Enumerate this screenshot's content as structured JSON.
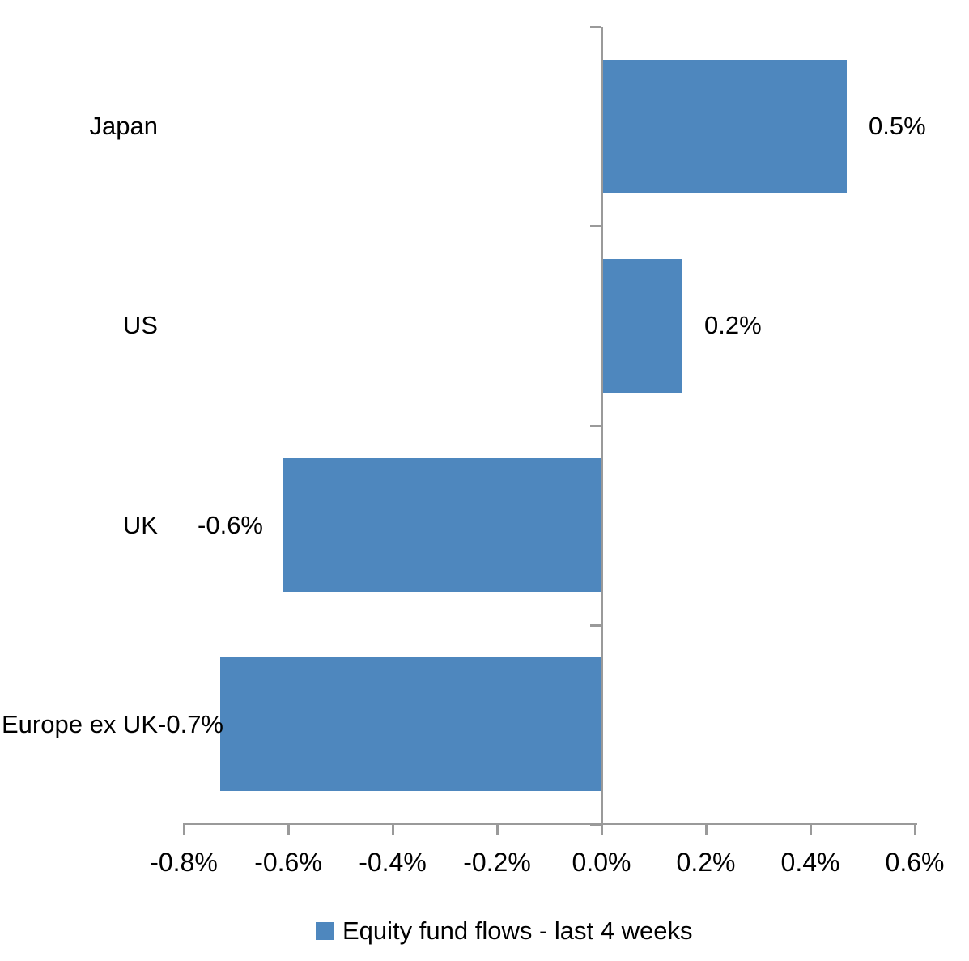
{
  "chart_data": {
    "type": "bar",
    "orientation": "horizontal",
    "title": "",
    "categories": [
      "Japan",
      "US",
      "UK",
      "Europe ex UK"
    ],
    "values": [
      0.5,
      0.2,
      -0.6,
      -0.7
    ],
    "value_labels": [
      "0.5%",
      "0.2%",
      "-0.6%",
      "-0.7%"
    ],
    "bar_values_rendered": [
      0.47,
      0.155,
      -0.61,
      -0.73
    ],
    "series": [
      {
        "name": "Equity fund flows - last 4 weeks",
        "values": [
          0.5,
          0.2,
          -0.6,
          -0.7
        ]
      }
    ],
    "xlabel": "",
    "ylabel": "",
    "xlim": [
      -0.8,
      0.6
    ],
    "x_tick_values": [
      -0.8,
      -0.6,
      -0.4,
      -0.2,
      0.0,
      0.2,
      0.4,
      0.6
    ],
    "x_tick_labels": [
      "-0.8%",
      "-0.6%",
      "-0.4%",
      "-0.2%",
      "0.0%",
      "0.2%",
      "0.4%",
      "0.6%"
    ],
    "grid": false,
    "legend_position": "bottom",
    "label_gaps": [
      27,
      27,
      25,
      -4
    ],
    "bar_color": "#4e87be",
    "axis_color": "#9a9a9a",
    "text_color": "#000000"
  },
  "legend": {
    "label": "Equity fund flows - last 4 weeks"
  }
}
